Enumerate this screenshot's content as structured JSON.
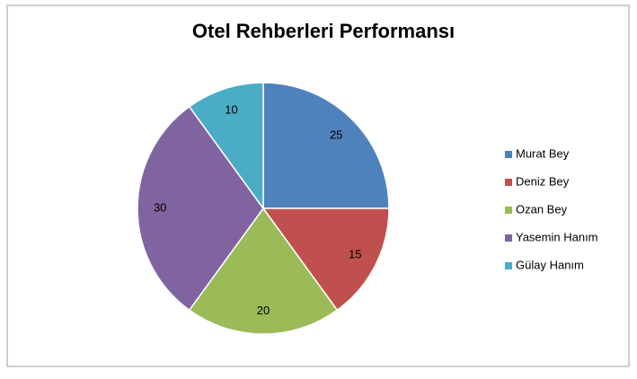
{
  "chart_data": {
    "type": "pie",
    "title": "Otel Rehberleri Performansı",
    "categories": [
      "Murat Bey",
      "Deniz Bey",
      "Ozan Bey",
      "Yasemin Hanım",
      "Gülay Hanım"
    ],
    "values": [
      25,
      15,
      20,
      30,
      10
    ],
    "colors": [
      "#4f81bd",
      "#c0504d",
      "#9bbb59",
      "#8064a2",
      "#4bacc6"
    ],
    "legend": "right"
  }
}
